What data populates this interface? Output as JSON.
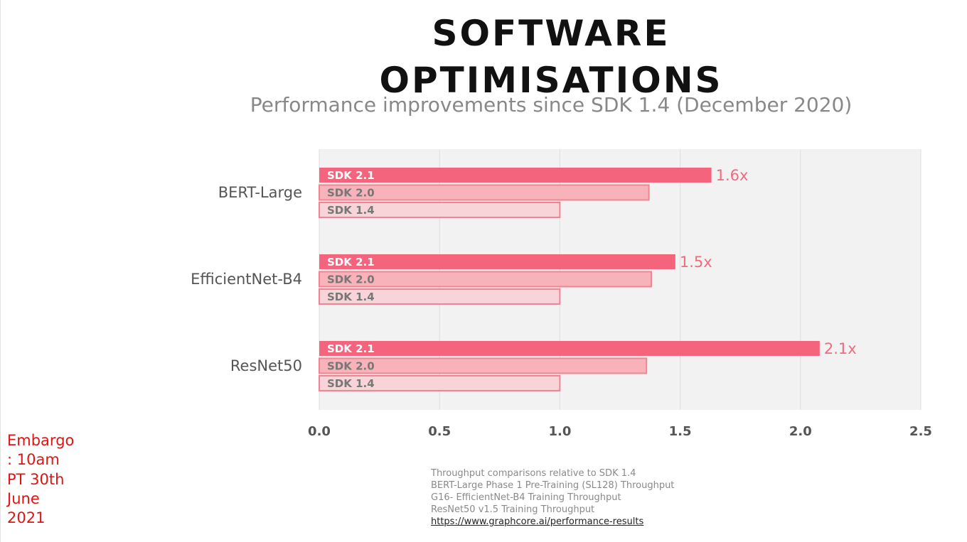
{
  "slide": {
    "title": "SOFTWARE OPTIMISATIONS"
  },
  "embargo": {
    "lines": [
      "Embargo",
      ": 10am",
      "PT 30th",
      "June",
      "2021"
    ]
  },
  "footnotes": {
    "lines": [
      "Throughput comparisons relative to SDK 1.4",
      "BERT-Large Phase 1 Pre-Training (SL128) Throughput",
      "G16- EfficientNet-B4 Training Throughput",
      "ResNet50 v1.5 Training Throughput"
    ],
    "link": "https://www.graphcore.ai/performance-results"
  },
  "colors": {
    "sdk21_fill": "#f4647c",
    "sdk20_fill": "#f8b3ba",
    "sdk14_fill": "#f8d4d8",
    "bar_border": "#ef8593",
    "data_label": "#ef6b80",
    "plot_background": "#f2f2f2",
    "gridline": "#dedede"
  },
  "chart_data": {
    "type": "bar",
    "orientation": "horizontal",
    "title": "Performance improvements since SDK 1.4 (December 2020)",
    "categories": [
      "BERT-Large",
      "EfficientNet-B4",
      "ResNet50"
    ],
    "series": [
      {
        "name": "SDK 2.1",
        "values": [
          1.63,
          1.48,
          2.08
        ],
        "labels": [
          "1.6x",
          "1.5x",
          "2.1x"
        ]
      },
      {
        "name": "SDK 2.0",
        "values": [
          1.37,
          1.38,
          1.36
        ]
      },
      {
        "name": "SDK 1.4",
        "values": [
          1.0,
          1.0,
          1.0
        ]
      }
    ],
    "xlim": [
      0,
      2.5
    ],
    "xticks": [
      0.0,
      0.5,
      1.0,
      1.5,
      2.0,
      2.5
    ],
    "xtick_labels": [
      "0.0",
      "0.5",
      "1.0",
      "1.5",
      "2.0",
      "2.5"
    ],
    "grid": "vertical",
    "legend": "none"
  }
}
